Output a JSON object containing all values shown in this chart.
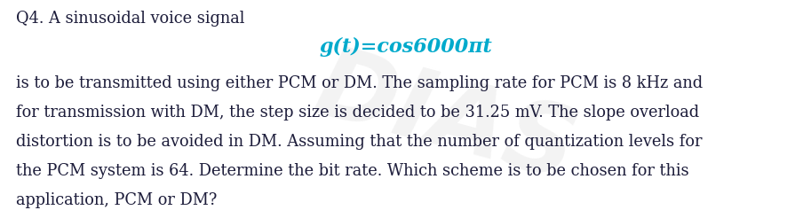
{
  "background_color": "#ffffff",
  "watermark_text": "DIAS",
  "watermark_color": "#c8c8c8",
  "line1": "Q4. A sinusoidal voice signal",
  "line2_italic_colored": "g(t)=cos6000πt",
  "line2_color": "#00aacc",
  "line3": "is to be transmitted using either PCM or DM. The sampling rate for PCM is 8 kHz and",
  "line4": "for transmission with DM, the step size is decided to be 31.25 mV. The slope overload",
  "line5": "distortion is to be avoided in DM. Assuming that the number of quantization levels for",
  "line6": "the PCM system is 64. Determine the bit rate. Which scheme is to be chosen for this",
  "line7": "application, PCM or DM?",
  "body_fontsize": 12.8,
  "formula_fontsize": 16,
  "text_color": "#1c1c3a",
  "fig_width": 9.13,
  "fig_height": 2.46,
  "dpi": 100
}
